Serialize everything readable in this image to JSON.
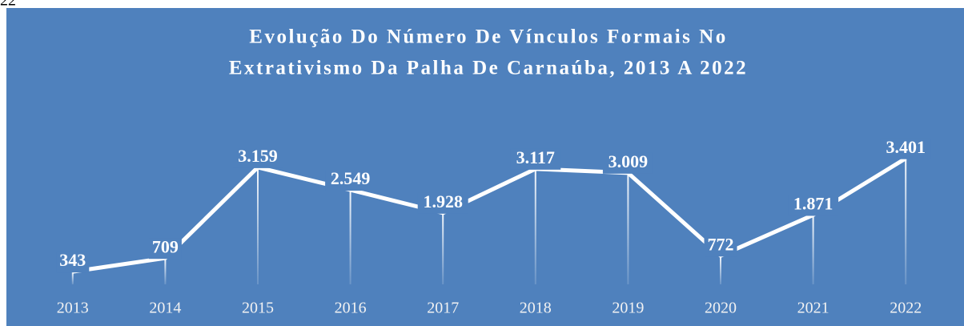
{
  "page_fragment": "22",
  "chart_data": {
    "type": "line",
    "title_lines": [
      "Evolução Do Número De Vínculos Formais No",
      "Extrativismo Da Palha De Carnaúba, 2013 A 2022"
    ],
    "categories": [
      "2013",
      "2014",
      "2015",
      "2016",
      "2017",
      "2018",
      "2019",
      "2020",
      "2021",
      "2022"
    ],
    "values": [
      343,
      709,
      3159,
      2549,
      1928,
      3117,
      3009,
      772,
      1871,
      3401
    ],
    "value_labels": [
      "343",
      "709",
      "3.159",
      "2.549",
      "1.928",
      "3.117",
      "3.009",
      "772",
      "1.871",
      "3.401"
    ],
    "color": "#ffffff",
    "background": "#4f81bd",
    "ylim": [
      0,
      4000
    ],
    "drop_lines": true
  }
}
